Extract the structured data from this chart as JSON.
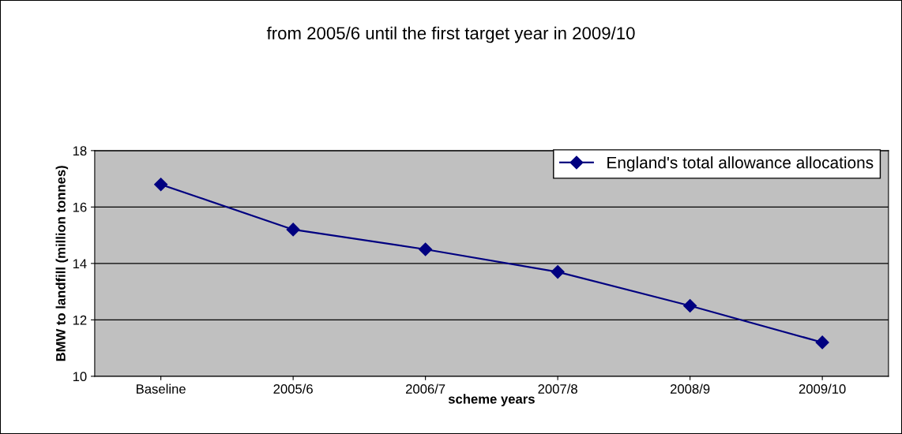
{
  "chart_data": {
    "type": "line",
    "title": "from 2005/6 until the first target year in 2009/10",
    "xlabel": "scheme years",
    "ylabel": "BMW to landfill (million tonnes)",
    "categories": [
      "Baseline",
      "2005/6",
      "2006/7",
      "2007/8",
      "2008/9",
      "2009/10"
    ],
    "series": [
      {
        "name": "England's total allowance allocations",
        "color": "#000080",
        "values": [
          16.8,
          15.2,
          14.5,
          13.7,
          12.5,
          11.2
        ]
      }
    ],
    "ylim": [
      10,
      18
    ],
    "yticks": [
      10,
      12,
      14,
      16,
      18
    ],
    "grid": "y",
    "legend": "top right",
    "marker": "diamond",
    "line_style": "solid"
  }
}
